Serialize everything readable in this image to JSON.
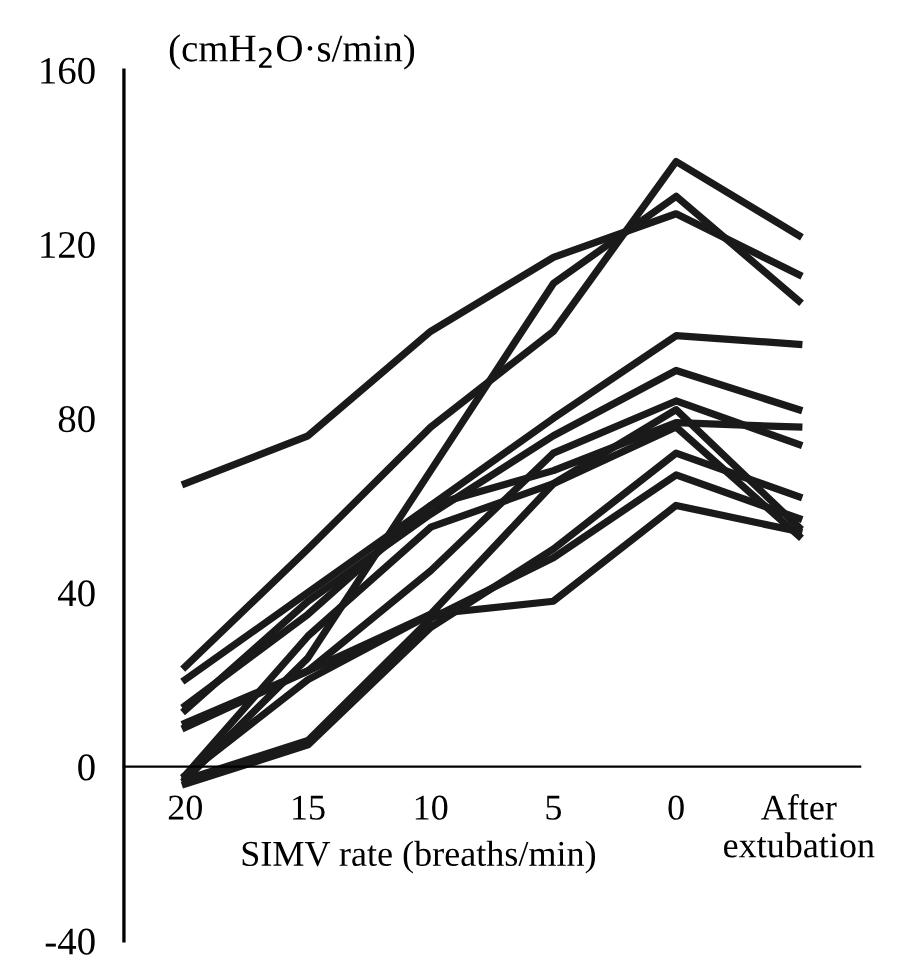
{
  "chart_data": {
    "type": "line",
    "ylabel": "(cmH$_{2}$O·s/min)",
    "xlabel": "SIMV rate (breaths/min)",
    "categories": [
      "20",
      "15",
      "10",
      "5",
      "0",
      "After\nextubation"
    ],
    "ylim": [
      -40,
      160
    ],
    "yticks": [
      -40,
      0,
      40,
      80,
      120,
      160
    ],
    "grid": false,
    "legend": false,
    "marker": "none",
    "line_style": "solid",
    "series": [
      {
        "color": "#1a1a1a",
        "values": [
          65,
          76,
          100,
          117,
          127,
          113
        ]
      },
      {
        "color": "#1a1a1a",
        "values": [
          23,
          50,
          78,
          100,
          139,
          122
        ]
      },
      {
        "color": "#1a1a1a",
        "values": [
          -3,
          25,
          68,
          111,
          131,
          107
        ]
      },
      {
        "color": "#1a1a1a",
        "values": [
          20,
          40,
          60,
          80,
          99,
          97
        ]
      },
      {
        "color": "#1a1a1a",
        "values": [
          13,
          38,
          58,
          76,
          91,
          82
        ]
      },
      {
        "color": "#1a1a1a",
        "values": [
          10,
          22,
          45,
          72,
          84,
          74
        ]
      },
      {
        "color": "#1a1a1a",
        "values": [
          14,
          35,
          60,
          68,
          79,
          78
        ]
      },
      {
        "color": "#1a1a1a",
        "values": [
          -2,
          30,
          55,
          65,
          82,
          55
        ]
      },
      {
        "color": "#1a1a1a",
        "values": [
          -4,
          5,
          32,
          50,
          72,
          62
        ]
      },
      {
        "color": "#1a1a1a",
        "values": [
          -3,
          6,
          34,
          48,
          67,
          57
        ]
      },
      {
        "color": "#1a1a1a",
        "values": [
          9,
          22,
          35,
          38,
          60,
          54
        ]
      },
      {
        "color": "#1a1a1a",
        "values": [
          -2,
          20,
          35,
          65,
          78,
          53
        ]
      }
    ]
  }
}
